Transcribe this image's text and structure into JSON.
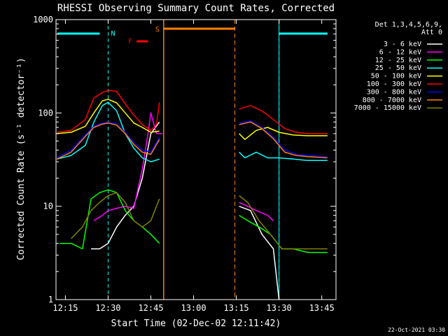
{
  "chart_data": {
    "type": "line",
    "title": "RHESSI Observing Summary Count Rates, Corrected",
    "xlabel": "Start Time (02-Dec-02 12:11:42)",
    "ylabel": "Corrected Count Rate (s⁻¹ detector⁻¹)",
    "y_scale": "log",
    "ylim": [
      1,
      1000
    ],
    "xlim": [
      "12:11:42",
      "13:50:00"
    ],
    "x_ticks": [
      "12:15",
      "12:30",
      "12:45",
      "13:00",
      "13:15",
      "13:30",
      "13:45"
    ],
    "y_ticks": [
      "1",
      "10",
      "100",
      "1000"
    ],
    "legend_position": "right",
    "legend_header": [
      "Det 1,3,4,5,6,9,",
      "Att 0"
    ],
    "footer_date": "22-Oct-2021 03:30",
    "annotations": [
      {
        "label": "N",
        "color": "#00ffff",
        "kind": "night",
        "start": "12:11:42",
        "end": "12:30:00"
      },
      {
        "label": "N",
        "color": "#00ffff",
        "kind": "night",
        "start": "13:30:00",
        "end": "13:47:00"
      },
      {
        "label": "S",
        "color": "#ff8000",
        "kind": "SAA",
        "start": "12:49:30",
        "end": "13:14:30"
      },
      {
        "label": "F",
        "color": "#ff0000",
        "kind": "flare",
        "start": "12:40:00",
        "end": "12:44:00"
      }
    ],
    "series": [
      {
        "name": "3 - 6 keV",
        "color": "#ffffff",
        "segments": [
          [
            [
              "12:24",
              3.5
            ],
            [
              "12:27",
              3.5
            ],
            [
              "12:30",
              4
            ],
            [
              "12:33",
              6
            ],
            [
              "12:36",
              8
            ],
            [
              "12:39",
              10
            ],
            [
              "12:42",
              20
            ],
            [
              "12:45",
              60
            ],
            [
              "12:48",
              80
            ]
          ],
          [
            [
              "13:16",
              10
            ],
            [
              "13:20",
              9
            ],
            [
              "13:24",
              5
            ],
            [
              "13:28",
              3.5
            ],
            [
              "13:30",
              1
            ]
          ]
        ]
      },
      {
        "name": "6 - 12 keV",
        "color": "#ff00ff",
        "segments": [
          [
            [
              "12:25",
              7
            ],
            [
              "12:28",
              8
            ],
            [
              "12:30",
              9
            ],
            [
              "12:33",
              9.5
            ],
            [
              "12:36",
              10
            ],
            [
              "12:39",
              9.5
            ],
            [
              "12:42",
              25
            ],
            [
              "12:44",
              60
            ],
            [
              "12:45",
              100
            ],
            [
              "12:47",
              60
            ],
            [
              "12:49",
              60
            ]
          ],
          [
            [
              "13:16",
              11
            ],
            [
              "13:19",
              10
            ],
            [
              "13:22",
              9
            ],
            [
              "13:26",
              8
            ],
            [
              "13:28",
              7
            ]
          ]
        ]
      },
      {
        "name": "12 - 25 keV",
        "color": "#00ff00",
        "segments": [
          [
            [
              "12:13",
              4
            ],
            [
              "12:17",
              4
            ],
            [
              "12:21",
              3.5
            ],
            [
              "12:24",
              12
            ],
            [
              "12:27",
              14
            ],
            [
              "12:30",
              15
            ],
            [
              "12:33",
              14
            ],
            [
              "12:36",
              9
            ],
            [
              "12:39",
              7
            ],
            [
              "12:42",
              6
            ],
            [
              "12:45",
              5
            ],
            [
              "12:48",
              4
            ]
          ],
          [
            [
              "13:16",
              8
            ],
            [
              "13:19",
              7
            ],
            [
              "13:23",
              6
            ],
            [
              "13:27",
              5
            ],
            [
              "13:31",
              3.5
            ],
            [
              "13:35",
              3.5
            ],
            [
              "13:40",
              3.2
            ],
            [
              "13:47",
              3.2
            ]
          ]
        ]
      },
      {
        "name": "25 - 50 keV",
        "color": "#00ffff",
        "segments": [
          [
            [
              "12:12",
              32
            ],
            [
              "12:17",
              35
            ],
            [
              "12:22",
              45
            ],
            [
              "12:25",
              80
            ],
            [
              "12:28",
              120
            ],
            [
              "12:30",
              130
            ],
            [
              "12:33",
              105
            ],
            [
              "12:36",
              60
            ],
            [
              "12:39",
              42
            ],
            [
              "12:42",
              33
            ],
            [
              "12:45",
              30
            ],
            [
              "12:48",
              32
            ]
          ],
          [
            [
              "13:16",
              38
            ],
            [
              "13:18",
              33
            ],
            [
              "13:22",
              38
            ],
            [
              "13:26",
              33
            ],
            [
              "13:30",
              33
            ],
            [
              "13:35",
              32
            ],
            [
              "13:40",
              31
            ],
            [
              "13:47",
              31
            ]
          ]
        ]
      },
      {
        "name": "50 - 100 keV",
        "color": "#ffff00",
        "segments": [
          [
            [
              "12:12",
              60
            ],
            [
              "12:17",
              62
            ],
            [
              "12:22",
              72
            ],
            [
              "12:25",
              100
            ],
            [
              "12:28",
              135
            ],
            [
              "12:30",
              140
            ],
            [
              "12:33",
              128
            ],
            [
              "12:36",
              100
            ],
            [
              "12:39",
              78
            ],
            [
              "12:42",
              70
            ],
            [
              "12:45",
              62
            ],
            [
              "12:48",
              64
            ]
          ],
          [
            [
              "13:16",
              60
            ],
            [
              "13:18",
              52
            ],
            [
              "13:22",
              65
            ],
            [
              "13:26",
              70
            ],
            [
              "13:30",
              62
            ],
            [
              "13:35",
              58
            ],
            [
              "13:40",
              57
            ],
            [
              "13:47",
              57
            ]
          ]
        ]
      },
      {
        "name": "100 - 300 keV",
        "color": "#ff0000",
        "segments": [
          [
            [
              "12:12",
              62
            ],
            [
              "12:17",
              65
            ],
            [
              "12:22",
              85
            ],
            [
              "12:25",
              145
            ],
            [
              "12:28",
              165
            ],
            [
              "12:30",
              175
            ],
            [
              "12:33",
              170
            ],
            [
              "12:36",
              125
            ],
            [
              "12:39",
              95
            ],
            [
              "12:42",
              75
            ],
            [
              "12:45",
              65
            ],
            [
              "12:47",
              75
            ],
            [
              "12:48",
              130
            ]
          ],
          [
            [
              "13:16",
              110
            ],
            [
              "13:20",
              120
            ],
            [
              "13:24",
              105
            ],
            [
              "13:28",
              85
            ],
            [
              "13:32",
              68
            ],
            [
              "13:36",
              62
            ],
            [
              "13:40",
              60
            ],
            [
              "13:47",
              60
            ]
          ]
        ]
      },
      {
        "name": "300 - 800 keV",
        "color": "#0000ff",
        "segments": [
          [
            [
              "12:12",
              33
            ],
            [
              "12:17",
              40
            ],
            [
              "12:22",
              58
            ],
            [
              "12:25",
              72
            ],
            [
              "12:28",
              78
            ],
            [
              "12:30",
              80
            ],
            [
              "12:33",
              76
            ],
            [
              "12:36",
              62
            ],
            [
              "12:39",
              48
            ],
            [
              "12:42",
              40
            ],
            [
              "12:45",
              38
            ],
            [
              "12:48",
              55
            ]
          ],
          [
            [
              "13:16",
              78
            ],
            [
              "13:20",
              82
            ],
            [
              "13:24",
              70
            ],
            [
              "13:28",
              55
            ],
            [
              "13:32",
              40
            ],
            [
              "13:36",
              36
            ],
            [
              "13:40",
              35
            ],
            [
              "13:47",
              34
            ]
          ]
        ]
      },
      {
        "name": "800 - 7000 keV",
        "color": "#ff8000",
        "segments": [
          [
            [
              "12:12",
              32
            ],
            [
              "12:17",
              38
            ],
            [
              "12:22",
              56
            ],
            [
              "12:25",
              70
            ],
            [
              "12:28",
              76
            ],
            [
              "12:30",
              78
            ],
            [
              "12:33",
              74
            ],
            [
              "12:36",
              60
            ],
            [
              "12:39",
              46
            ],
            [
              "12:42",
              38
            ],
            [
              "12:45",
              36
            ],
            [
              "12:48",
              52
            ]
          ],
          [
            [
              "13:16",
              75
            ],
            [
              "13:20",
              80
            ],
            [
              "13:24",
              68
            ],
            [
              "13:28",
              53
            ],
            [
              "13:32",
              38
            ],
            [
              "13:36",
              35
            ],
            [
              "13:40",
              34
            ],
            [
              "13:47",
              33
            ]
          ]
        ]
      },
      {
        "name": "7000 - 15000 keV",
        "color": "#808000",
        "segments": [
          [
            [
              "12:17",
              4.5
            ],
            [
              "12:21",
              6
            ],
            [
              "12:24",
              9
            ],
            [
              "12:27",
              11
            ],
            [
              "12:30",
              13
            ],
            [
              "12:33",
              14
            ],
            [
              "12:36",
              11
            ],
            [
              "12:39",
              7
            ],
            [
              "12:42",
              6
            ],
            [
              "12:45",
              7
            ],
            [
              "12:48",
              12
            ]
          ],
          [
            [
              "13:16",
              13
            ],
            [
              "13:19",
              11
            ],
            [
              "13:23",
              7
            ],
            [
              "13:27",
              5
            ],
            [
              "13:31",
              3.5
            ],
            [
              "13:35",
              3.5
            ],
            [
              "13:40",
              3.5
            ],
            [
              "13:47",
              3.5
            ]
          ]
        ]
      }
    ]
  }
}
